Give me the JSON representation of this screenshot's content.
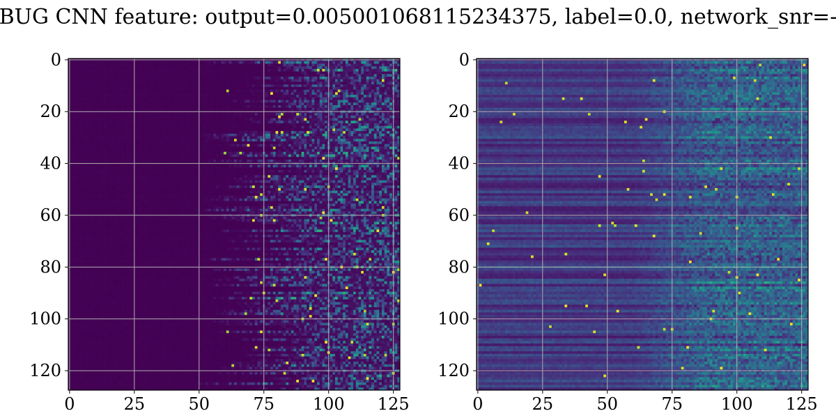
{
  "figure": {
    "title": "BUG CNN feature: output=0.005001068115234375, label=0.0, network_snr=-"
  },
  "chart_data": [
    {
      "type": "heatmap",
      "colormap": "viridis",
      "grid": true,
      "rows": 128,
      "cols": 128,
      "xlim": [
        0,
        127
      ],
      "ylim": [
        127,
        0
      ],
      "x_ticks": [
        0,
        25,
        50,
        75,
        100,
        125
      ],
      "y_ticks": [
        0,
        20,
        40,
        60,
        80,
        100,
        120
      ],
      "x_tick_labels": [
        "0",
        "25",
        "50",
        "75",
        "100",
        "125"
      ],
      "y_tick_labels": [
        "0",
        "20",
        "40",
        "60",
        "80",
        "100",
        "120"
      ]
    },
    {
      "type": "heatmap",
      "colormap": "viridis",
      "grid": true,
      "rows": 128,
      "cols": 128,
      "xlim": [
        0,
        127
      ],
      "ylim": [
        127,
        0
      ],
      "x_ticks": [
        0,
        25,
        50,
        75,
        100,
        125
      ],
      "y_ticks": [
        0,
        20,
        40,
        60,
        80,
        100,
        120
      ],
      "x_tick_labels": [
        "0",
        "25",
        "50",
        "75",
        "100",
        "125"
      ],
      "y_tick_labels": [
        "0",
        "20",
        "40",
        "60",
        "80",
        "100",
        "120"
      ]
    }
  ]
}
